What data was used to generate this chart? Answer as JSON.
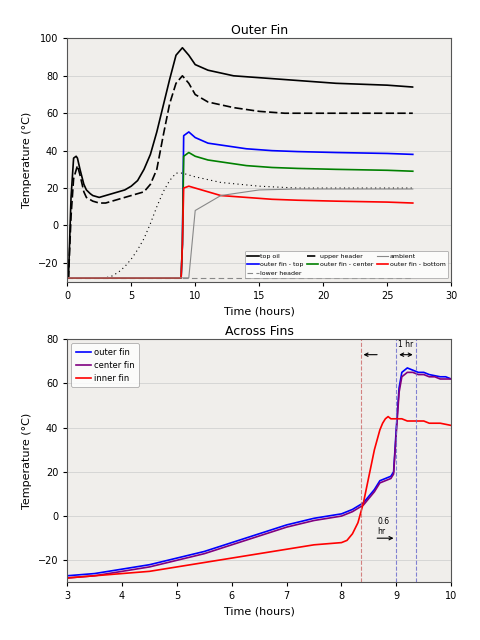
{
  "chart1": {
    "title": "Outer Fin",
    "xlabel": "Time (hours)",
    "ylabel": "Temperature (°C)",
    "xlim": [
      0,
      30
    ],
    "ylim": [
      -30,
      100
    ],
    "yticks": [
      -20,
      0,
      20,
      40,
      60,
      80,
      100
    ],
    "xticks": [
      0,
      5,
      10,
      15,
      20,
      25,
      30
    ]
  },
  "chart2": {
    "title": "Across Fins",
    "xlabel": "Time (hours)",
    "ylabel": "Temperature (°C)",
    "xlim": [
      3,
      10
    ],
    "ylim": [
      -30,
      80
    ],
    "yticks": [
      -20,
      0,
      20,
      40,
      60,
      80
    ],
    "xticks": [
      3,
      4,
      5,
      6,
      7,
      8,
      9,
      10
    ]
  },
  "bg_color": "#f0eeeb",
  "plot_bg": "#f0eeeb"
}
